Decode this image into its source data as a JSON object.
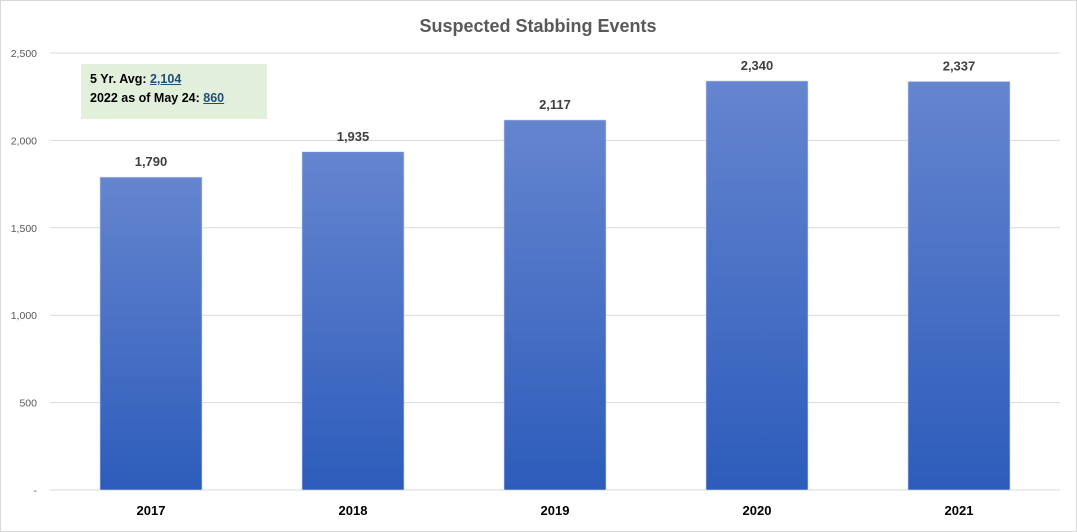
{
  "chart_data": {
    "type": "bar",
    "title": "Suspected Stabbing Events",
    "categories": [
      "2017",
      "2018",
      "2019",
      "2020",
      "2021"
    ],
    "values": [
      1790,
      1935,
      2117,
      2340,
      2337
    ],
    "data_labels": [
      "1,790",
      "1,935",
      "2,117",
      "2,340",
      "2,337"
    ],
    "y_ticks": [
      0,
      500,
      1000,
      1500,
      2000,
      2500
    ],
    "y_tick_labels": [
      "-",
      "500",
      "1,000",
      "1,500",
      "2,000",
      "2,500"
    ],
    "ylim": [
      0,
      2500
    ],
    "grid": true,
    "xlabel": "",
    "ylabel": "",
    "bar_color_top": "#6585cf",
    "bar_color_bottom": "#2d5cbb"
  },
  "annotation": {
    "avg_label": "5 Yr. Avg: ",
    "avg_value": "2,104",
    "ytd_label": "2022 as of May 24:  ",
    "ytd_value": "860"
  }
}
